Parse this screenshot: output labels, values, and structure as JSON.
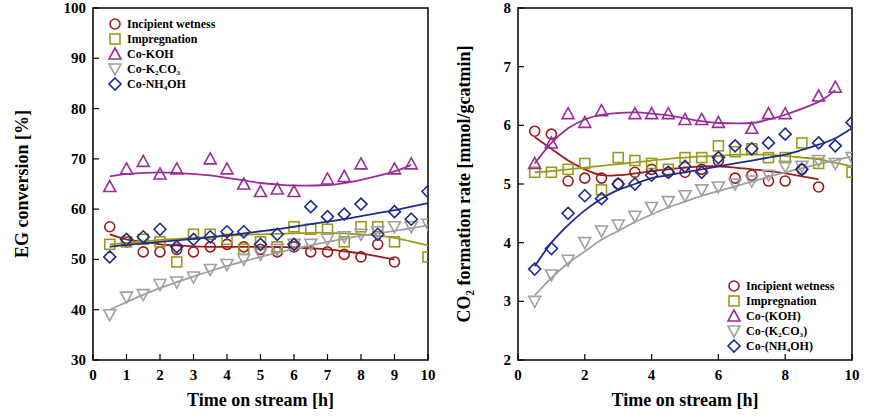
{
  "chart_data": [
    {
      "type": "scatter",
      "xlabel": "Time on stream [h]",
      "ylabel": "EG conversion [%]",
      "xlim": [
        0,
        10
      ],
      "ylim": [
        30,
        100
      ],
      "xticks": [
        0,
        1,
        2,
        3,
        4,
        5,
        6,
        7,
        8,
        9,
        10
      ],
      "yticks": [
        30,
        40,
        50,
        60,
        70,
        80,
        90,
        100
      ],
      "legend": "upper left",
      "line_style": "solid",
      "series": [
        {
          "name": "Incipient wetness",
          "color": "#9b1c1c",
          "marker": "circle",
          "x": [
            0.5,
            1,
            1.5,
            2,
            2.5,
            3,
            3.5,
            4,
            4.5,
            5,
            5.5,
            6,
            6.5,
            7,
            7.5,
            8,
            8.5,
            9
          ],
          "values": [
            56.5,
            53.5,
            51.5,
            51.5,
            52,
            51.5,
            52.5,
            53,
            52.5,
            52,
            51.5,
            52.5,
            51.5,
            51.5,
            51,
            50.5,
            53,
            49.5
          ],
          "trend": [
            55,
            54,
            53.5,
            53,
            52.8,
            52.6,
            52.5,
            52.5,
            52.5,
            52.5,
            52.5,
            52.4,
            52.2,
            52,
            51.6,
            51.2,
            50.6,
            50
          ]
        },
        {
          "name": "Impregnation",
          "color": "#9c9a1a",
          "marker": "square",
          "x": [
            0.5,
            1,
            1.5,
            2,
            2.5,
            3,
            3.5,
            4,
            4.5,
            5,
            5.5,
            6,
            6.5,
            7,
            7.5,
            8,
            8.5,
            9,
            10
          ],
          "values": [
            53,
            53.5,
            54,
            53.5,
            49.5,
            55,
            55,
            54,
            52,
            53.5,
            52.5,
            56.5,
            56,
            56,
            53.5,
            56.5,
            56.5,
            53.5,
            50.5
          ],
          "trend": [
            53,
            53.3,
            53.6,
            53.9,
            54.1,
            54.3,
            54.5,
            54.7,
            54.9,
            55,
            55.1,
            55.2,
            55.3,
            55.3,
            55.2,
            55,
            54.7,
            54.3,
            52.8
          ]
        },
        {
          "name": "Co-KOH",
          "color": "#9b2d9b",
          "marker": "triangle-up",
          "x": [
            0.5,
            1,
            1.5,
            2,
            2.5,
            3.5,
            4,
            4.5,
            5,
            5.5,
            6,
            7,
            7.5,
            8,
            9,
            9.5
          ],
          "values": [
            64.5,
            68,
            69.5,
            67,
            68,
            70,
            68,
            65,
            63.5,
            64,
            63.5,
            66,
            66.5,
            69,
            68,
            69
          ],
          "trend": [
            66.5,
            67,
            67.2,
            67.3,
            67.2,
            66.7,
            66.2,
            65.7,
            65.2,
            64.9,
            64.7,
            64.8,
            65.2,
            65.8,
            67.5,
            68.8
          ]
        },
        {
          "name": "Co-K₂CO₃",
          "color": "#a0a0a0",
          "marker": "triangle-down",
          "x": [
            0.5,
            1,
            1.5,
            2,
            2.5,
            3,
            3.5,
            4,
            4.5,
            5,
            5.5,
            6,
            6.5,
            7,
            7.5,
            8,
            8.5,
            9,
            9.5,
            10
          ],
          "values": [
            39,
            42.5,
            43,
            45,
            45.5,
            46.5,
            48,
            49,
            50,
            51,
            52,
            53,
            53,
            54,
            54.5,
            55,
            55.5,
            56.5,
            56.5,
            57
          ],
          "trend": [
            40,
            41.5,
            43,
            44.3,
            45.5,
            46.6,
            47.7,
            48.7,
            49.6,
            50.5,
            51.3,
            52.1,
            52.8,
            53.5,
            54.1,
            54.7,
            55.2,
            55.7,
            56.2,
            56.8
          ]
        },
        {
          "name": "Co-NH₄OH",
          "color": "#1c2e8c",
          "marker": "diamond",
          "x": [
            0.5,
            1,
            1.5,
            2,
            2.5,
            3,
            3.5,
            4,
            4.5,
            5,
            5.5,
            6,
            6.5,
            7,
            7.5,
            8,
            8.5,
            9,
            9.5,
            10
          ],
          "values": [
            50.5,
            54,
            54.5,
            56,
            52.5,
            54,
            54.5,
            55.5,
            55.5,
            53,
            55,
            53,
            60.5,
            58.5,
            59,
            61,
            55,
            59.5,
            58,
            63.5
          ],
          "trend": [
            52.5,
            52.9,
            53.2,
            53.5,
            53.8,
            54.1,
            54.4,
            54.8,
            55.2,
            55.6,
            56,
            56.5,
            57,
            57.5,
            58,
            58.6,
            59.2,
            59.8,
            60.5,
            61.2
          ]
        }
      ]
    },
    {
      "type": "scatter",
      "xlabel": "Time on stream [h]",
      "ylabel": "CO₂ formation rate [mmol/gcatmin]",
      "xlim": [
        0,
        10
      ],
      "ylim": [
        2,
        8
      ],
      "xticks": [
        0,
        2,
        4,
        6,
        8,
        10
      ],
      "yticks": [
        2,
        3,
        4,
        5,
        6,
        7,
        8
      ],
      "legend": "lower right",
      "line_style": "solid",
      "series": [
        {
          "name": "Incipient wetness",
          "color": "#9b1c1c",
          "marker": "circle",
          "x": [
            0.5,
            1,
            1.5,
            2,
            2.5,
            3,
            3.5,
            4,
            4.5,
            5,
            5.5,
            6,
            6.5,
            7,
            7.5,
            8,
            8.5,
            9
          ],
          "values": [
            5.9,
            5.85,
            5.05,
            5.1,
            5.1,
            5.0,
            5.2,
            5.25,
            5.2,
            5.2,
            5.25,
            5.4,
            5.1,
            5.15,
            5.05,
            5.05,
            5.25,
            4.95
          ],
          "trend": [
            5.8,
            5.6,
            5.4,
            5.25,
            5.15,
            5.15,
            5.18,
            5.22,
            5.25,
            5.28,
            5.3,
            5.3,
            5.28,
            5.25,
            5.22,
            5.18,
            5.13,
            5.08
          ]
        },
        {
          "name": "Impregnation",
          "color": "#9c9a1a",
          "marker": "square",
          "x": [
            0.5,
            1,
            1.5,
            2,
            2.5,
            3,
            3.5,
            4,
            4.5,
            5,
            5.5,
            6,
            6.5,
            7,
            7.5,
            8,
            8.5,
            9,
            10
          ],
          "values": [
            5.2,
            5.2,
            5.25,
            5.35,
            4.9,
            5.45,
            5.4,
            5.35,
            5.25,
            5.45,
            5.45,
            5.65,
            5.55,
            5.6,
            5.45,
            5.45,
            5.7,
            5.35,
            5.2
          ],
          "trend": [
            5.2,
            5.22,
            5.25,
            5.28,
            5.31,
            5.34,
            5.37,
            5.4,
            5.43,
            5.45,
            5.47,
            5.48,
            5.5,
            5.5,
            5.5,
            5.48,
            5.45,
            5.42,
            5.3
          ]
        },
        {
          "name": "Co-(KOH)",
          "color": "#9b2d9b",
          "marker": "triangle-up",
          "x": [
            0.5,
            1,
            1.5,
            2,
            2.5,
            3.5,
            4,
            4.5,
            5,
            5.5,
            6,
            7,
            7.5,
            8,
            9,
            9.5
          ],
          "values": [
            5.35,
            5.7,
            6.2,
            6.05,
            6.25,
            6.2,
            6.2,
            6.2,
            6.1,
            6.1,
            6.05,
            5.95,
            6.2,
            6.2,
            6.5,
            6.65
          ],
          "trend": [
            5.35,
            5.7,
            5.95,
            6.1,
            6.18,
            6.22,
            6.2,
            6.17,
            6.12,
            6.07,
            6.04,
            6.04,
            6.1,
            6.18,
            6.4,
            6.6
          ]
        },
        {
          "name": "Co-(K₂CO₃)",
          "color": "#a0a0a0",
          "marker": "triangle-down",
          "x": [
            0.5,
            1,
            1.5,
            2,
            2.5,
            3,
            3.5,
            4,
            4.5,
            5,
            5.5,
            6,
            6.5,
            7,
            7.5,
            8,
            8.5,
            9,
            9.5,
            10
          ],
          "values": [
            3.0,
            3.45,
            3.7,
            4.0,
            4.2,
            4.3,
            4.45,
            4.6,
            4.7,
            4.8,
            4.9,
            4.95,
            5.0,
            5.05,
            5.15,
            5.3,
            5.3,
            5.4,
            5.35,
            5.45
          ],
          "trend": [
            3.1,
            3.4,
            3.65,
            3.85,
            4.05,
            4.2,
            4.35,
            4.48,
            4.6,
            4.7,
            4.8,
            4.88,
            4.96,
            5.04,
            5.12,
            5.2,
            5.27,
            5.34,
            5.4,
            5.47
          ]
        },
        {
          "name": "Co-(NH₄OH)",
          "color": "#1c2e8c",
          "marker": "diamond",
          "x": [
            0.5,
            1,
            1.5,
            2,
            2.5,
            3,
            3.5,
            4,
            4.5,
            5,
            5.5,
            6,
            6.5,
            7,
            7.5,
            8,
            8.5,
            9,
            9.5,
            10
          ],
          "values": [
            3.55,
            3.9,
            4.5,
            4.8,
            4.75,
            5.0,
            5.0,
            5.15,
            5.2,
            5.3,
            5.2,
            5.45,
            5.65,
            5.6,
            5.7,
            5.85,
            5.25,
            5.7,
            5.65,
            6.05
          ],
          "trend": [
            3.6,
            4.0,
            4.3,
            4.55,
            4.75,
            4.9,
            5.0,
            5.1,
            5.15,
            5.2,
            5.25,
            5.3,
            5.35,
            5.4,
            5.45,
            5.5,
            5.58,
            5.67,
            5.78,
            5.95
          ]
        }
      ]
    }
  ]
}
